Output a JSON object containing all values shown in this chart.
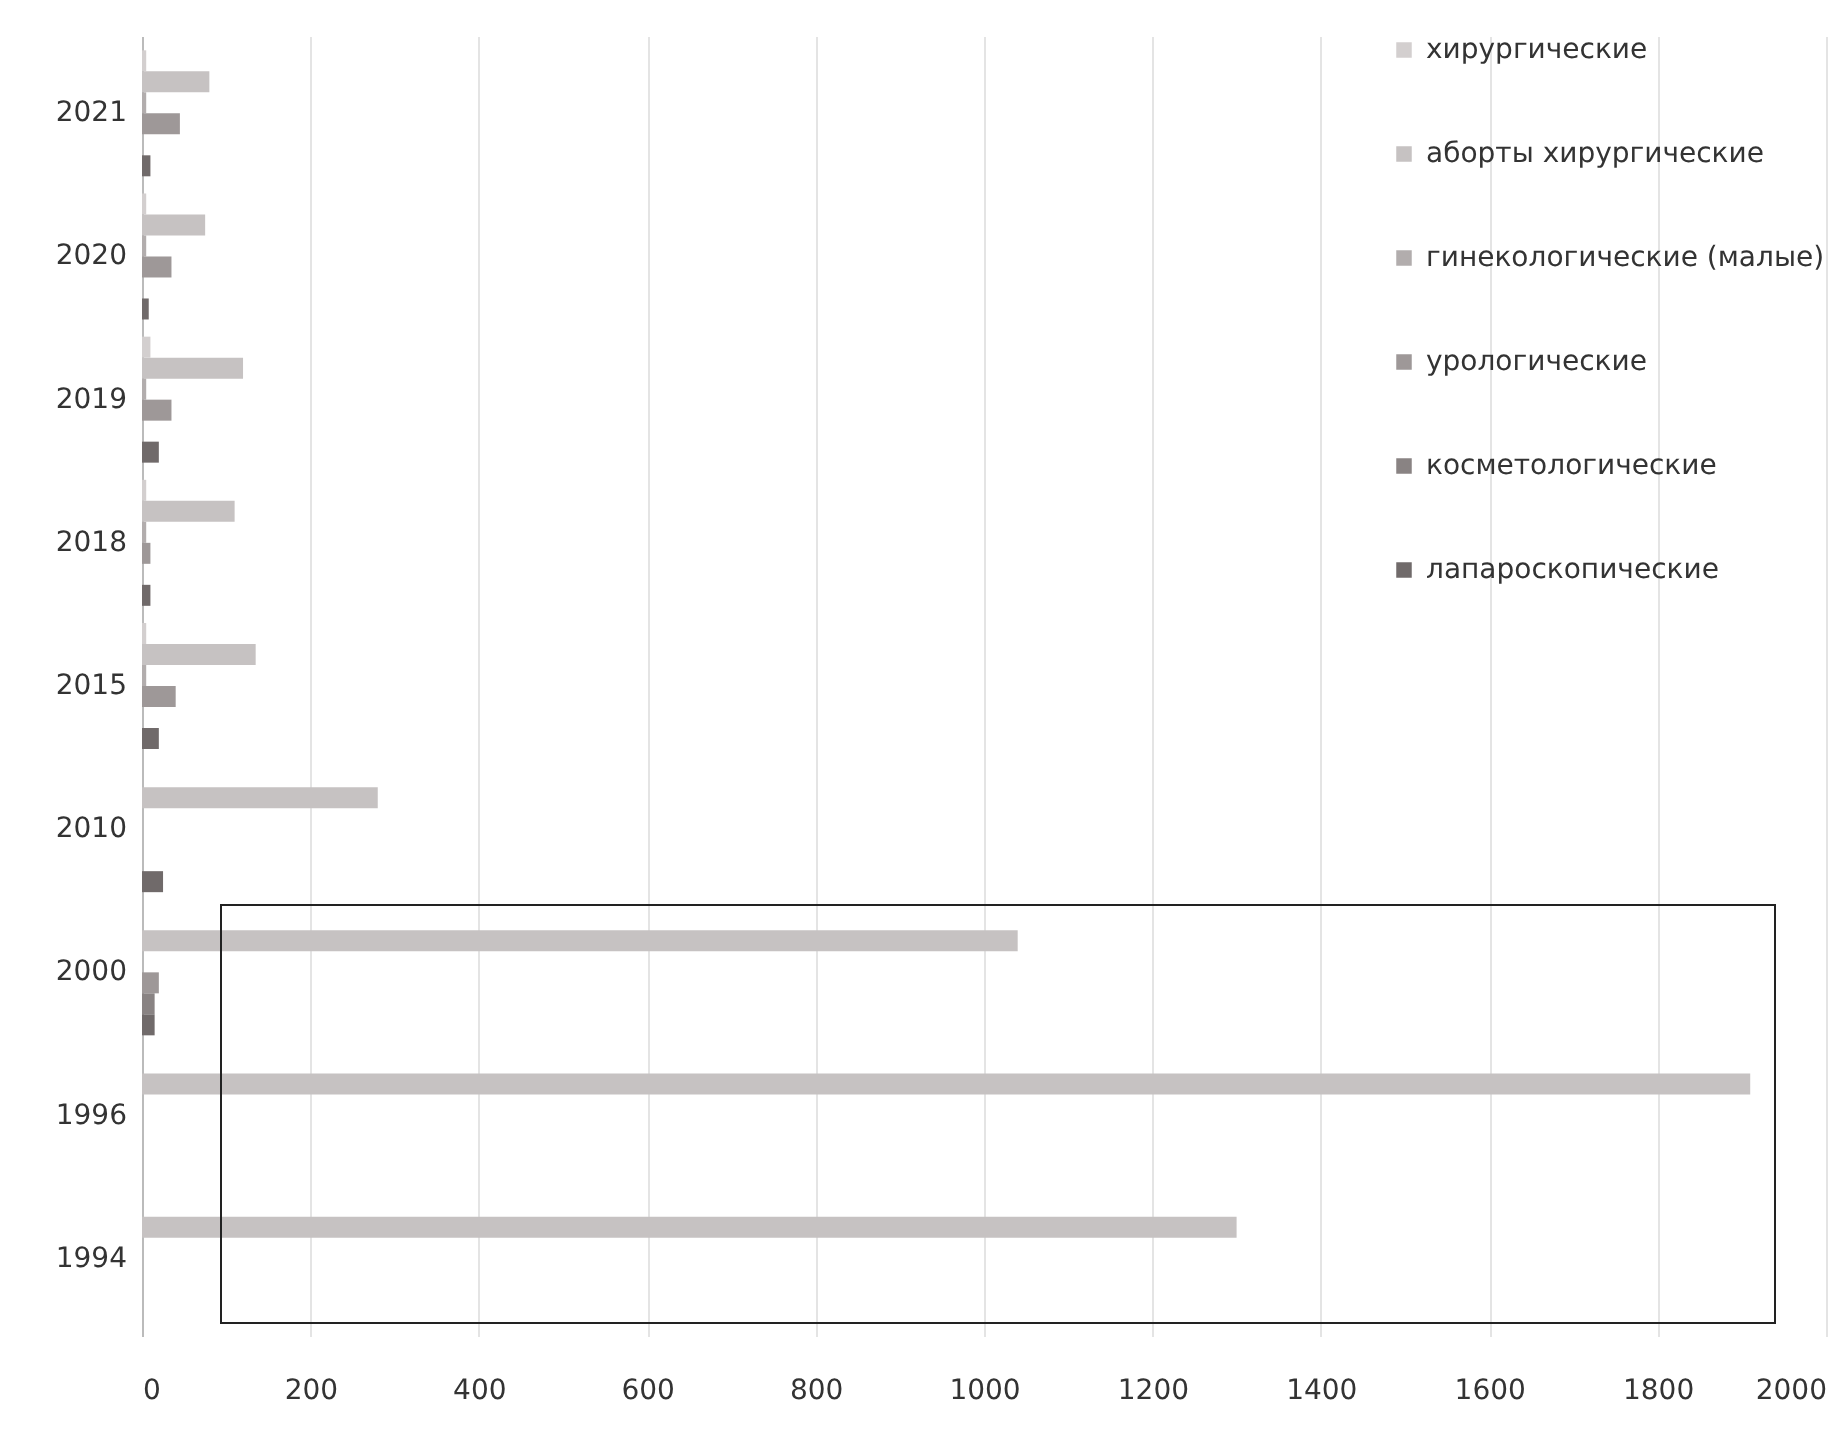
{
  "chart_data": {
    "type": "bar",
    "orientation": "horizontal",
    "categories": [
      "2021",
      "2020",
      "2019",
      "2018",
      "2015",
      "2010",
      "2000",
      "1996",
      "1994"
    ],
    "series": [
      {
        "name": "хирургические",
        "color": "#d3cfcf",
        "values": [
          5,
          5,
          10,
          5,
          5,
          null,
          null,
          null,
          null
        ]
      },
      {
        "name": "аборты хирургические",
        "color": "#c6c2c2",
        "values": [
          80,
          75,
          120,
          110,
          135,
          280,
          1040,
          1910,
          1300
        ]
      },
      {
        "name": "гинекологические (малые)",
        "color": "#b2adad",
        "values": [
          5,
          5,
          5,
          5,
          5,
          null,
          null,
          null,
          null
        ]
      },
      {
        "name": "урологические",
        "color": "#9e9898",
        "values": [
          45,
          35,
          35,
          10,
          40,
          null,
          20,
          null,
          null
        ]
      },
      {
        "name": "косметологические",
        "color": "#898383",
        "values": [
          null,
          null,
          null,
          null,
          null,
          null,
          15,
          null,
          null
        ]
      },
      {
        "name": "лапароскопические",
        "color": "#706a6a",
        "values": [
          10,
          8,
          20,
          10,
          20,
          25,
          15,
          null,
          null
        ]
      }
    ],
    "xlim": [
      0,
      2000
    ],
    "xticks": [
      0,
      200,
      400,
      600,
      800,
      1000,
      1200,
      1400,
      1600,
      1800,
      2000
    ],
    "grid": "x",
    "legend": "top right"
  }
}
